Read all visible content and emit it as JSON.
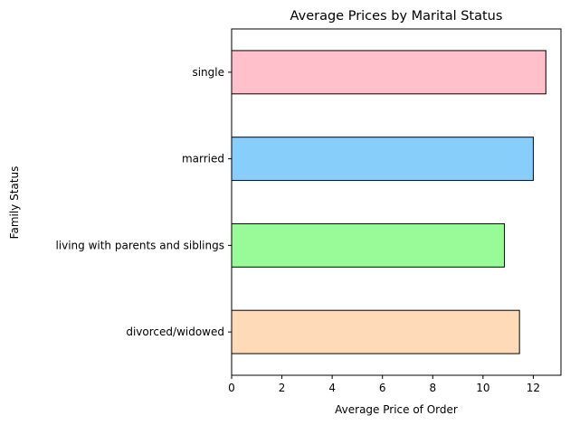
{
  "chart_data": {
    "type": "bar",
    "orientation": "horizontal",
    "title": "Average Prices by Marital Status",
    "xlabel": "Average Price of Order",
    "ylabel": "Family Status",
    "categories": [
      "divorced/widowed",
      "living with parents and siblings",
      "married",
      "single"
    ],
    "values": [
      11.45,
      10.85,
      12.0,
      12.5
    ],
    "colors": [
      "#FFDAB9",
      "#98FB98",
      "#87CEFA",
      "#FFC0CB"
    ],
    "xlim": [
      0,
      13.1
    ],
    "xticks": [
      "0",
      "2",
      "4",
      "6",
      "8",
      "10",
      "12"
    ],
    "grid": false,
    "legend": "none"
  }
}
